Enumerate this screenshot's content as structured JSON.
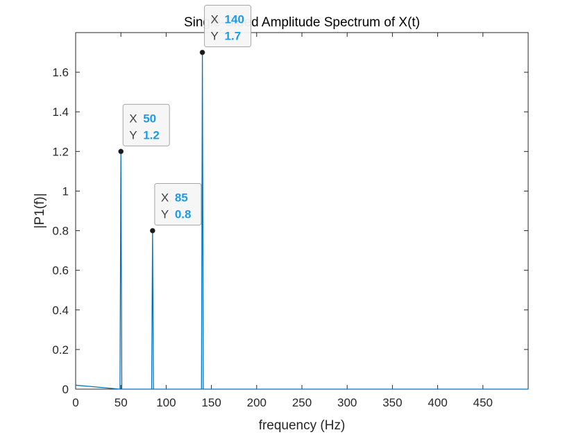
{
  "chart_data": {
    "type": "line",
    "title": "Single-Sided Amplitude Spectrum of X(t)",
    "xlabel": "frequency (Hz)",
    "ylabel": "|P1(f)|",
    "xlim": [
      0,
      500
    ],
    "ylim": [
      0,
      1.8
    ],
    "xticks": [
      "0",
      "50",
      "100",
      "150",
      "200",
      "250",
      "300",
      "350",
      "400",
      "450"
    ],
    "yticks": [
      "0",
      "0.2",
      "0.4",
      "0.6",
      "0.8",
      "1",
      "1.2",
      "1.4",
      "1.6"
    ],
    "grid": false,
    "series": [
      {
        "color": "#0072BD",
        "x": [
          0,
          49,
          50,
          51,
          84,
          85,
          86,
          139,
          140,
          141,
          500
        ],
        "y": [
          0.02,
          0,
          1.2,
          0,
          0,
          0.8,
          0,
          0,
          1.7,
          0,
          0
        ]
      }
    ],
    "datatips": [
      {
        "x_key": "X",
        "x_value": "50",
        "y_key": "Y",
        "y_value": "1.2",
        "x": 50,
        "y": 1.2
      },
      {
        "x_key": "X",
        "x_value": "85",
        "y_key": "Y",
        "y_value": "0.8",
        "x": 85,
        "y": 0.8
      },
      {
        "x_key": "X",
        "x_value": "140",
        "y_key": "Y",
        "y_value": "1.7",
        "x": 140,
        "y": 1.7
      }
    ],
    "datatip_value_color": "#1E9BE6"
  }
}
